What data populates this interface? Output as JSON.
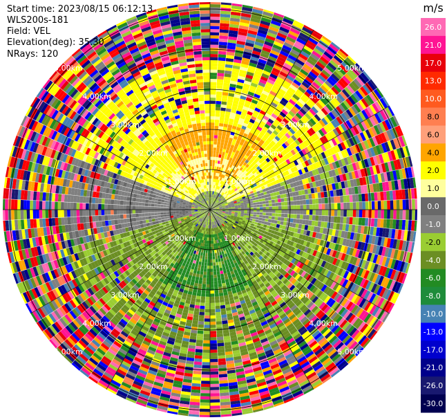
{
  "info": {
    "start_time": "Start time: 2023/08/15 06:12:13",
    "site": "WLS200s-181",
    "field": "Field: VEL",
    "elevation": "Elevation(deg): 35.30",
    "nrays": "NRays: 120"
  },
  "colorbar": {
    "unit": "m/s",
    "levels": [
      "26.0",
      "21.0",
      "17.0",
      "13.0",
      "10.0",
      "8.0",
      "6.0",
      "4.0",
      "2.0",
      "1.0",
      "0.0",
      "-1.0",
      "-2.0",
      "-4.0",
      "-6.0",
      "-8.0",
      "-10.0",
      "-13.0",
      "-17.0",
      "-21.0",
      "-26.0",
      "-30.0"
    ],
    "colors": [
      "#ff69b4",
      "#ff1493",
      "#e8000b",
      "#ff2a00",
      "#ff5a1f",
      "#ff7f50",
      "#ffa07a",
      "#ffa500",
      "#ffff00",
      "#ffff9e",
      "#696969",
      "#808080",
      "#9acd32",
      "#6b8e23",
      "#228b22",
      "#1e8c3a",
      "#4682b4",
      "#0000ff",
      "#0000cd",
      "#00008b",
      "#191970",
      "#000050"
    ]
  },
  "range_labels": [
    "1.00km",
    "2.00km",
    "3.00km",
    "4.00km",
    "5.00km"
  ],
  "noise_palette": [
    "#ff1493",
    "#ffff00",
    "#0000ff",
    "#ff69b4",
    "#00008b",
    "#228b22",
    "#ff0000",
    "#ffa500",
    "#9acd32",
    "#ff7f50",
    "#191970",
    "#6b8e23",
    "#808080",
    "#e8000b",
    "#4682b4"
  ]
}
